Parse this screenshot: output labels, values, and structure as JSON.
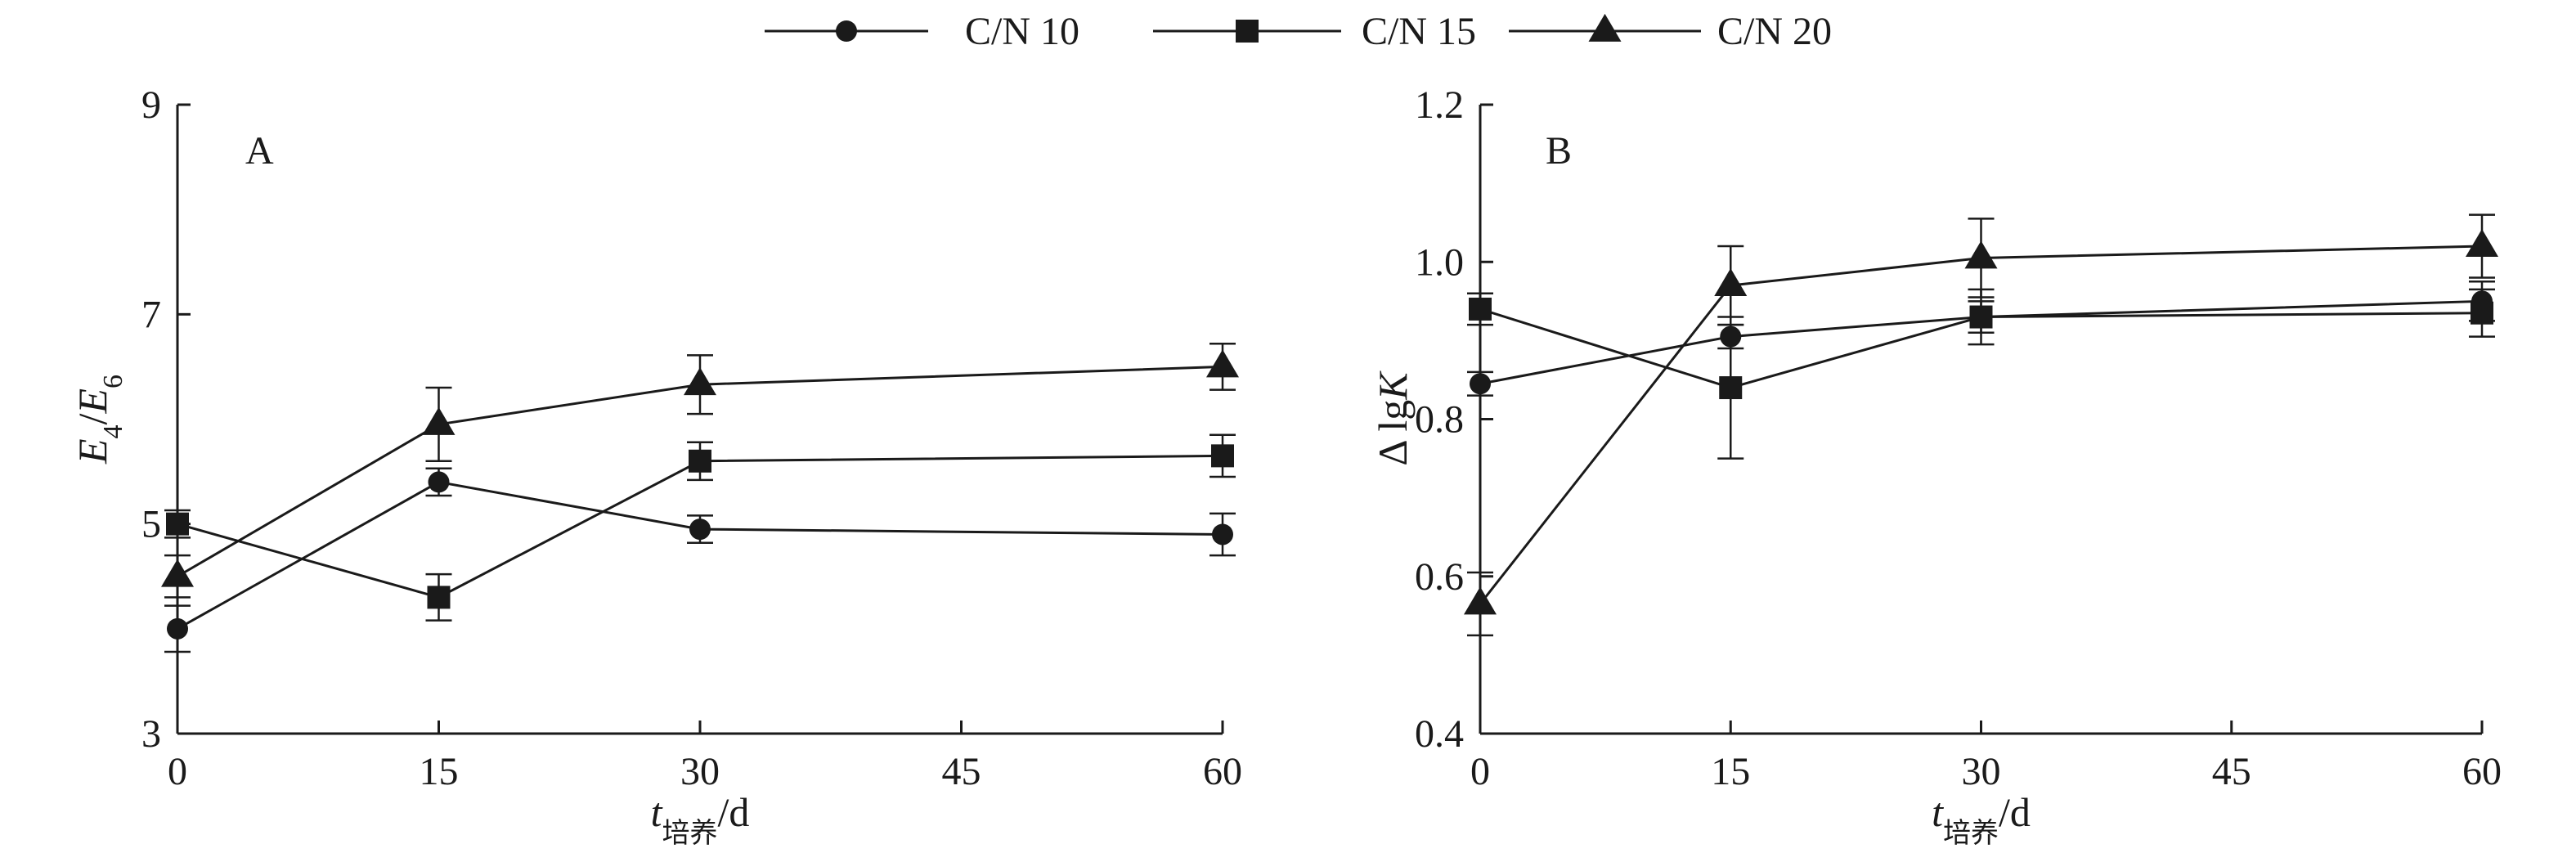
{
  "legend": [
    {
      "label": "C/N 10",
      "marker": "circle"
    },
    {
      "label": "C/N 15",
      "marker": "square"
    },
    {
      "label": "C/N 20",
      "marker": "triangle"
    }
  ],
  "chart_data": [
    {
      "type": "line",
      "panel_label": "A",
      "xlabel": {
        "italic": "t",
        "sub": "培养",
        "rest": "/d"
      },
      "ylabel": {
        "parts": [
          {
            "t": "E",
            "italic": true
          },
          {
            "t": "4",
            "sub": true
          },
          {
            "t": "/",
            "italic": false
          },
          {
            "t": "E",
            "italic": true
          },
          {
            "t": "6",
            "sub": true
          }
        ]
      },
      "x": [
        0,
        15,
        30,
        60
      ],
      "xticks": [
        0,
        15,
        30,
        45,
        60
      ],
      "xlim": [
        0,
        60
      ],
      "ylim": [
        3,
        9
      ],
      "yticks": [
        3,
        5,
        7,
        9
      ],
      "grid": false,
      "legend_position": "top-center",
      "series": [
        {
          "name": "C/N 10",
          "marker": "circle",
          "values": [
            4.0,
            5.4,
            4.95,
            4.9
          ],
          "errors": [
            0.22,
            0.13,
            0.13,
            0.2
          ]
        },
        {
          "name": "C/N 15",
          "marker": "square",
          "values": [
            5.0,
            4.3,
            5.6,
            5.65
          ],
          "errors": [
            0.13,
            0.22,
            0.18,
            0.2
          ]
        },
        {
          "name": "C/N 20",
          "marker": "triangle",
          "values": [
            4.5,
            5.95,
            6.33,
            6.5
          ],
          "errors": [
            0.2,
            0.35,
            0.28,
            0.22
          ]
        }
      ]
    },
    {
      "type": "line",
      "panel_label": "B",
      "xlabel": {
        "italic": "t",
        "sub": "培养",
        "rest": "/d"
      },
      "ylabel": {
        "parts": [
          {
            "t": "Δ lg",
            "italic": false
          },
          {
            "t": "K",
            "italic": true
          }
        ]
      },
      "x": [
        0,
        15,
        30,
        60
      ],
      "xticks": [
        0,
        15,
        30,
        45,
        60
      ],
      "xlim": [
        0,
        60
      ],
      "ylim": [
        0.4,
        1.2
      ],
      "yticks": [
        0.4,
        0.6,
        0.8,
        1.0,
        1.2
      ],
      "ytick_labels": [
        "0.4",
        "0.6",
        "0.8",
        "1.0",
        "1.2"
      ],
      "grid": false,
      "series": [
        {
          "name": "C/N 10",
          "marker": "circle",
          "values": [
            0.845,
            0.905,
            0.93,
            0.95
          ],
          "errors": [
            0.015,
            0.015,
            0.02,
            0.025
          ]
        },
        {
          "name": "C/N 15",
          "marker": "square",
          "values": [
            0.94,
            0.84,
            0.93,
            0.935
          ],
          "errors": [
            0.02,
            0.09,
            0.035,
            0.03
          ]
        },
        {
          "name": "C/N 20",
          "marker": "triangle",
          "values": [
            0.565,
            0.97,
            1.005,
            1.02
          ],
          "errors": [
            0.04,
            0.05,
            0.05,
            0.04
          ]
        }
      ]
    }
  ]
}
